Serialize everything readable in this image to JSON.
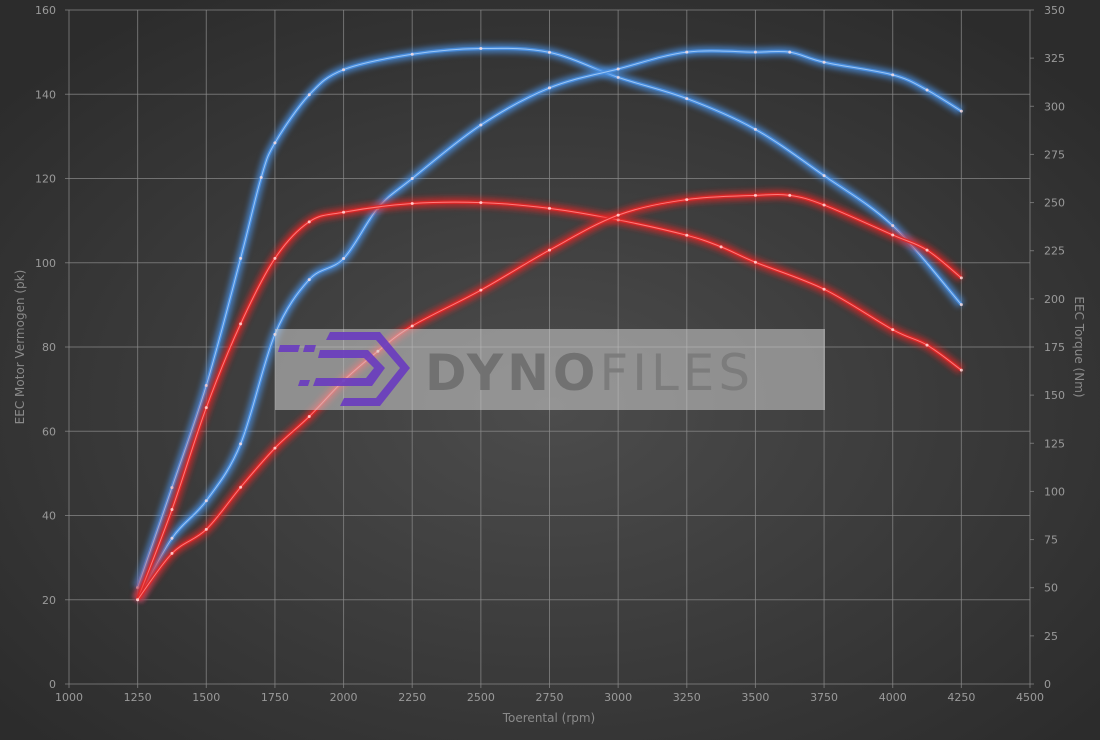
{
  "chart_data": {
    "type": "line",
    "title": "",
    "xlabel": "Toerental (rpm)",
    "ylabel_left": "EEC Motor Vermogen (pk)",
    "ylabel_right": "EEC Torque (Nm)",
    "xlim": [
      1000,
      4500
    ],
    "xticks": [
      1000,
      1250,
      1500,
      1750,
      2000,
      2250,
      2500,
      2750,
      3000,
      3250,
      3500,
      3750,
      4000,
      4250,
      4500
    ],
    "ylim_left": [
      0,
      160
    ],
    "yticks_left": [
      0,
      20,
      40,
      60,
      80,
      100,
      120,
      140,
      160
    ],
    "ylim_right": [
      0,
      350
    ],
    "yticks_right": [
      0,
      25,
      50,
      75,
      100,
      125,
      150,
      175,
      200,
      225,
      250,
      275,
      300,
      325,
      350
    ],
    "grid": true,
    "legend": "none",
    "series": [
      {
        "axis": "right",
        "color": "#4a90e2",
        "x": [
          1250,
          1375,
          1500,
          1625,
          1700,
          1750,
          1875,
          2000,
          2250,
          2500,
          2750,
          3000,
          3250,
          3500,
          3750,
          4000,
          4250
        ],
        "y": [
          50,
          102,
          155,
          221,
          263,
          281,
          306,
          319,
          327,
          330,
          328,
          315,
          304,
          288,
          264,
          238,
          197
        ]
      },
      {
        "axis": "left",
        "color": "#4a90e2",
        "x": [
          1250,
          1375,
          1500,
          1625,
          1750,
          1875,
          2000,
          2125,
          2250,
          2500,
          2750,
          3000,
          3250,
          3500,
          3625,
          3750,
          4000,
          4125,
          4250
        ],
        "y": [
          20,
          34.6,
          43.5,
          57,
          83,
          96,
          101,
          113,
          120,
          132.7,
          141.5,
          146,
          150,
          150,
          150,
          147.6,
          144.6,
          141,
          136
        ]
      },
      {
        "axis": "right",
        "color": "#e02828",
        "x": [
          1250,
          1375,
          1500,
          1625,
          1750,
          1875,
          2000,
          2250,
          2500,
          2750,
          3000,
          3250,
          3375,
          3500,
          3750,
          4000,
          4125,
          4250
        ],
        "y": [
          44,
          90.6,
          143.5,
          187,
          221,
          240,
          245,
          249.5,
          250,
          247,
          241,
          233,
          227,
          219,
          205,
          184,
          176,
          163
        ]
      },
      {
        "axis": "left",
        "color": "#e02828",
        "x": [
          1250,
          1375,
          1500,
          1625,
          1750,
          1875,
          2000,
          2125,
          2250,
          2500,
          2750,
          3000,
          3250,
          3500,
          3625,
          3750,
          4000,
          4125,
          4250
        ],
        "y": [
          20,
          31,
          36.7,
          46.7,
          56,
          63.5,
          72,
          79,
          85,
          93.5,
          103,
          111.3,
          115,
          116,
          116,
          113.7,
          106.6,
          103,
          96.4
        ]
      }
    ]
  },
  "watermark": {
    "text_a": "DYNO",
    "text_b": "FILES",
    "logo_color": "#6a3bc0"
  }
}
